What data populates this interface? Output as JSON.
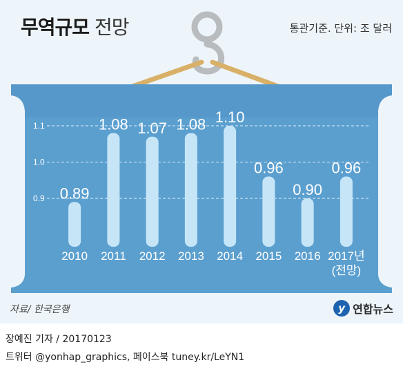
{
  "title": {
    "bold": "무역규모",
    "light": "전망"
  },
  "unit_note": "통관기준. 단위: 조 달러",
  "source": "자료/ 한국은행",
  "logo": {
    "mark": "y",
    "text": "연합뉴스"
  },
  "credits": {
    "line1": "장예진 기자 / 20170123",
    "line2": "트위터 @yonhap_graphics, 페이스북 tuney.kr/LeYN1"
  },
  "colors": {
    "container": "#5b9fcf",
    "container_dark": "#4a8cbd",
    "bar": "#c6e6f8",
    "hanger": "#d9b068",
    "hook": "#b9bcbf"
  },
  "chart_data": {
    "type": "bar",
    "categories": [
      "2010",
      "2011",
      "2012",
      "2013",
      "2014",
      "2015",
      "2016",
      "2017년"
    ],
    "category_notes": [
      "",
      "",
      "",
      "",
      "",
      "",
      "",
      "(전망)"
    ],
    "values": [
      0.89,
      1.08,
      1.07,
      1.08,
      1.1,
      0.96,
      0.9,
      0.96
    ],
    "value_labels": [
      "0.89",
      "1.08",
      "1.07",
      "1.08",
      "1.10",
      "0.96",
      "0.90",
      "0.96"
    ],
    "y_ticks": [
      0.9,
      1.0,
      1.1
    ],
    "y_tick_labels": [
      "0.9",
      "1.0",
      "1.1"
    ],
    "ylim": [
      0.8,
      1.15
    ],
    "grid": true,
    "title": "",
    "xlabel": "",
    "ylabel": ""
  }
}
